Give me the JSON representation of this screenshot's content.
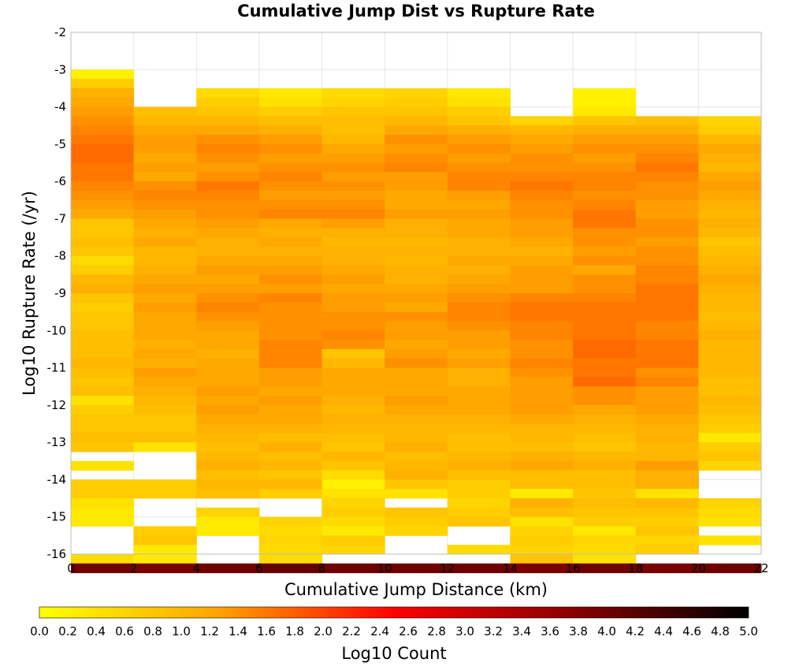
{
  "chart_data": {
    "type": "heatmap",
    "title": "Cumulative Jump Dist vs Rupture Rate",
    "xlabel": "Cumulative Jump Distance (km)",
    "ylabel": "Log10 Rupture Rate (/yr)",
    "xlim": [
      0,
      22
    ],
    "ylim": [
      -16,
      -2
    ],
    "x_ticks": [
      "0",
      "2",
      "4",
      "6",
      "8",
      "10",
      "12",
      "14",
      "16",
      "18",
      "20",
      "22"
    ],
    "y_ticks": [
      "-2",
      "-3",
      "-4",
      "-5",
      "-6",
      "-7",
      "-8",
      "-9",
      "-10",
      "-11",
      "-12",
      "-13",
      "-14",
      "-15",
      "-16"
    ],
    "x_bin_edges": [
      0,
      2,
      4,
      6,
      8,
      10,
      12,
      14,
      16,
      18,
      20,
      22
    ],
    "y_bin_size": 0.25,
    "y_bins_top": -3,
    "grid": true,
    "colorbar": {
      "label": "Log10 Count",
      "range": [
        0,
        5
      ],
      "ticks": [
        "0.0",
        "0.2",
        "0.4",
        "0.6",
        "0.8",
        "1.0",
        "1.2",
        "1.4",
        "1.6",
        "1.8",
        "2.0",
        "2.2",
        "2.4",
        "2.6",
        "2.8",
        "3.0",
        "3.2",
        "3.4",
        "3.6",
        "3.8",
        "4.0",
        "4.2",
        "4.4",
        "4.6",
        "4.8",
        "5.0"
      ],
      "colors": [
        "#ffff00",
        "#ffa500",
        "#ff0000",
        "#8b0000",
        "#000000"
      ]
    },
    "values": [
      [
        0.2,
        null,
        null,
        null,
        null,
        null,
        null,
        null,
        null,
        null,
        null
      ],
      [
        0.7,
        null,
        null,
        null,
        null,
        null,
        null,
        null,
        null,
        null,
        null
      ],
      [
        1.1,
        null,
        0.5,
        0.3,
        0.5,
        0.6,
        0.3,
        null,
        0.2,
        null,
        null
      ],
      [
        1.2,
        null,
        0.7,
        0.4,
        0.6,
        0.7,
        0.4,
        null,
        0.2,
        null,
        null
      ],
      [
        1.3,
        0.9,
        0.8,
        0.7,
        0.8,
        0.8,
        0.7,
        null,
        0.3,
        null,
        null
      ],
      [
        1.4,
        1.0,
        1.0,
        0.9,
        0.9,
        1.0,
        0.8,
        0.6,
        0.8,
        0.9,
        0.6
      ],
      [
        1.5,
        1.2,
        1.2,
        1.1,
        0.9,
        1.2,
        1.1,
        1.0,
        1.1,
        1.1,
        0.7
      ],
      [
        1.6,
        1.3,
        1.4,
        1.3,
        1.0,
        1.4,
        1.3,
        1.2,
        1.3,
        1.3,
        1.0
      ],
      [
        1.7,
        1.3,
        1.5,
        1.4,
        1.2,
        1.3,
        1.4,
        1.3,
        1.4,
        1.4,
        1.2
      ],
      [
        1.7,
        1.2,
        1.4,
        1.3,
        1.3,
        1.4,
        1.3,
        1.4,
        1.3,
        1.5,
        1.1
      ],
      [
        1.6,
        1.3,
        1.3,
        1.4,
        1.4,
        1.5,
        1.4,
        1.4,
        1.4,
        1.6,
        1.0
      ],
      [
        1.6,
        1.2,
        1.4,
        1.5,
        1.3,
        1.3,
        1.5,
        1.5,
        1.5,
        1.5,
        1.2
      ],
      [
        1.5,
        1.4,
        1.6,
        1.4,
        1.4,
        1.3,
        1.5,
        1.6,
        1.5,
        1.4,
        1.3
      ],
      [
        1.4,
        1.5,
        1.5,
        1.3,
        1.3,
        1.2,
        1.3,
        1.5,
        1.4,
        1.4,
        1.2
      ],
      [
        1.3,
        1.4,
        1.4,
        1.4,
        1.4,
        1.2,
        1.2,
        1.4,
        1.5,
        1.3,
        1.1
      ],
      [
        1.2,
        1.3,
        1.4,
        1.5,
        1.5,
        1.3,
        1.3,
        1.4,
        1.6,
        1.3,
        1.0
      ],
      [
        0.8,
        1.2,
        1.3,
        1.2,
        1.3,
        1.1,
        1.2,
        1.3,
        1.6,
        1.4,
        1.1
      ],
      [
        0.8,
        1.1,
        1.2,
        1.1,
        1.1,
        1.1,
        1.2,
        1.3,
        1.4,
        1.4,
        1.0
      ],
      [
        0.9,
        1.2,
        1.1,
        1.2,
        1.0,
        1.0,
        1.1,
        1.2,
        1.4,
        1.3,
        0.8
      ],
      [
        0.8,
        1.0,
        1.1,
        1.1,
        1.1,
        1.1,
        1.1,
        1.1,
        1.3,
        1.4,
        0.9
      ],
      [
        0.5,
        1.0,
        1.2,
        1.2,
        1.1,
        1.0,
        1.2,
        1.2,
        1.4,
        1.4,
        1.0
      ],
      [
        0.7,
        1.1,
        1.3,
        1.3,
        1.2,
        1.1,
        1.1,
        1.3,
        1.2,
        1.5,
        1.1
      ],
      [
        1.0,
        1.2,
        1.2,
        1.4,
        1.3,
        1.1,
        1.2,
        1.3,
        1.4,
        1.5,
        1.2
      ],
      [
        1.1,
        1.3,
        1.3,
        1.3,
        1.2,
        1.2,
        1.3,
        1.3,
        1.4,
        1.6,
        1.1
      ],
      [
        0.8,
        1.2,
        1.4,
        1.5,
        1.3,
        1.3,
        1.4,
        1.5,
        1.5,
        1.6,
        1.0
      ],
      [
        0.7,
        1.3,
        1.5,
        1.4,
        1.3,
        1.2,
        1.5,
        1.6,
        1.6,
        1.6,
        1.0
      ],
      [
        0.8,
        1.2,
        1.4,
        1.4,
        1.4,
        1.4,
        1.5,
        1.6,
        1.6,
        1.6,
        0.9
      ],
      [
        0.8,
        1.2,
        1.3,
        1.4,
        1.4,
        1.3,
        1.4,
        1.5,
        1.6,
        1.5,
        1.0
      ],
      [
        0.9,
        1.2,
        1.2,
        1.4,
        1.5,
        1.3,
        1.3,
        1.5,
        1.6,
        1.5,
        1.1
      ],
      [
        0.9,
        1.1,
        1.2,
        1.5,
        1.4,
        1.2,
        1.3,
        1.4,
        1.7,
        1.6,
        1.0
      ],
      [
        0.9,
        1.2,
        1.1,
        1.5,
        0.8,
        1.3,
        1.2,
        1.4,
        1.7,
        1.6,
        1.0
      ],
      [
        1.0,
        1.1,
        1.2,
        1.5,
        1.0,
        1.4,
        1.3,
        1.5,
        1.6,
        1.6,
        1.0
      ],
      [
        0.9,
        1.3,
        1.2,
        1.3,
        1.2,
        1.2,
        1.1,
        1.4,
        1.6,
        1.4,
        1.0
      ],
      [
        0.8,
        1.2,
        1.2,
        1.3,
        1.2,
        1.2,
        1.1,
        1.3,
        1.7,
        1.5,
        0.9
      ],
      [
        0.9,
        1.1,
        1.3,
        1.2,
        1.2,
        1.2,
        1.2,
        1.3,
        1.4,
        1.3,
        0.9
      ],
      [
        0.4,
        1.0,
        1.2,
        1.3,
        1.1,
        1.3,
        1.2,
        1.3,
        1.4,
        1.3,
        1.0
      ],
      [
        0.7,
        0.9,
        1.3,
        1.2,
        1.0,
        1.2,
        1.2,
        1.3,
        1.2,
        1.3,
        0.9
      ],
      [
        0.8,
        0.8,
        1.2,
        1.2,
        1.1,
        1.1,
        1.1,
        1.2,
        1.1,
        1.2,
        0.8
      ],
      [
        0.8,
        0.8,
        1.1,
        1.1,
        1.0,
        1.0,
        1.0,
        1.0,
        1.0,
        1.1,
        0.7
      ],
      [
        0.9,
        0.9,
        1.0,
        0.9,
        0.9,
        1.0,
        0.9,
        1.0,
        0.9,
        1.1,
        0.3
      ],
      [
        0.8,
        0.4,
        0.9,
        1.1,
        0.8,
        1.1,
        0.9,
        0.9,
        0.8,
        1.0,
        0.7
      ],
      [
        null,
        null,
        1.0,
        0.9,
        1.0,
        0.9,
        1.0,
        1.1,
        1.0,
        1.0,
        0.8
      ],
      [
        0.4,
        null,
        1.1,
        1.0,
        0.8,
        1.0,
        1.1,
        1.2,
        1.1,
        1.3,
        0.6
      ],
      [
        null,
        null,
        0.9,
        0.8,
        0.5,
        1.1,
        0.9,
        0.9,
        0.9,
        1.1,
        null
      ],
      [
        0.7,
        0.7,
        1.0,
        1.0,
        0.2,
        0.8,
        0.7,
        0.9,
        0.9,
        1.1,
        null
      ],
      [
        0.7,
        0.7,
        0.9,
        0.7,
        0.4,
        0.4,
        0.7,
        0.3,
        0.8,
        0.4,
        null
      ],
      [
        0.4,
        null,
        null,
        null,
        0.6,
        null,
        0.6,
        1.1,
        0.9,
        1.0,
        0.6
      ],
      [
        0.3,
        null,
        0.6,
        null,
        0.7,
        0.8,
        0.7,
        0.9,
        0.8,
        0.8,
        0.5
      ],
      [
        0.3,
        null,
        0.3,
        0.6,
        0.5,
        0.7,
        0.8,
        0.4,
        0.7,
        0.7,
        0.4
      ],
      [
        null,
        0.7,
        0.3,
        0.5,
        0.3,
        0.6,
        null,
        0.6,
        0.3,
        0.8,
        null
      ],
      [
        null,
        0.8,
        null,
        0.6,
        0.7,
        null,
        null,
        0.7,
        0.6,
        0.6,
        0.4
      ],
      [
        null,
        0.3,
        null,
        0.5,
        0.6,
        null,
        0.5,
        0.6,
        0.5,
        0.7,
        null
      ],
      [
        0.5,
        0.3,
        null,
        0.5,
        null,
        null,
        null,
        0.8,
        0.4,
        null,
        null
      ],
      [
        4.0,
        3.9,
        4.0,
        4.1,
        4.0,
        4.0,
        4.0,
        3.9,
        4.0,
        3.9,
        4.0
      ]
    ]
  }
}
